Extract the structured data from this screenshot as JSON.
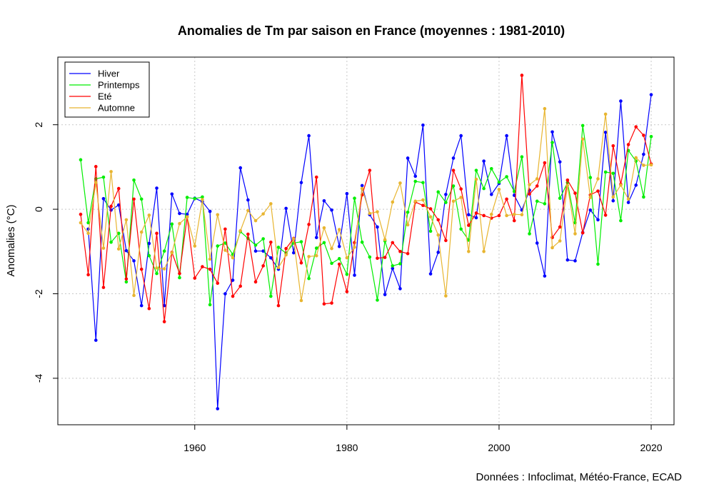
{
  "chart_data": {
    "type": "line",
    "title": "Anomalies de Tm par saison en France (moyennes : 1981-2010)",
    "xlabel": "",
    "ylabel": "Anomalies (°C)",
    "source": "Données : Infoclimat, Météo-France, ECAD",
    "xlim": [
      1942,
      2023
    ],
    "ylim": [
      -5.1,
      3.6
    ],
    "x_ticks": [
      1960,
      1980,
      2000,
      2020
    ],
    "y_ticks": [
      -4,
      -2,
      0,
      2
    ],
    "grid": true,
    "legend_position": "top-left",
    "x": [
      1945,
      1946,
      1947,
      1948,
      1949,
      1950,
      1951,
      1952,
      1953,
      1954,
      1955,
      1956,
      1957,
      1958,
      1959,
      1960,
      1961,
      1962,
      1963,
      1964,
      1965,
      1966,
      1967,
      1968,
      1969,
      1970,
      1971,
      1972,
      1973,
      1974,
      1975,
      1976,
      1977,
      1978,
      1979,
      1980,
      1981,
      1982,
      1983,
      1984,
      1985,
      1986,
      1987,
      1988,
      1989,
      1990,
      1991,
      1992,
      1993,
      1994,
      1995,
      1996,
      1997,
      1998,
      1999,
      2000,
      2001,
      2002,
      2003,
      2004,
      2005,
      2006,
      2007,
      2008,
      2009,
      2010,
      2011,
      2012,
      2013,
      2014,
      2015,
      2016,
      2017,
      2018,
      2019,
      2020
    ],
    "series": [
      {
        "name": "Hiver",
        "color": "#0000ff",
        "values": [
          null,
          -0.47,
          -3.1,
          0.25,
          -0.02,
          0.1,
          -0.98,
          -1.22,
          -2.28,
          -0.81,
          0.5,
          -2.28,
          0.36,
          -0.1,
          -0.12,
          0.26,
          0.18,
          -0.05,
          -4.72,
          -2.0,
          -1.68,
          0.98,
          0.22,
          -0.99,
          -0.99,
          -1.15,
          -1.42,
          0.02,
          -1.03,
          0.63,
          1.74,
          -0.67,
          0.2,
          -0.02,
          -0.88,
          0.37,
          -1.56,
          0.56,
          -0.13,
          -0.42,
          -2.02,
          -1.4,
          -1.88,
          1.21,
          0.78,
          1.99,
          -1.53,
          -1.02,
          0.35,
          1.21,
          1.74,
          -0.13,
          -0.2,
          1.14,
          0.35,
          0.61,
          1.74,
          0.33,
          -0.02,
          0.45,
          -0.8,
          -1.58,
          1.83,
          1.12,
          -1.2,
          -1.22,
          -0.55,
          -0.02,
          -0.25,
          1.82,
          0.2,
          2.56,
          0.16,
          0.57,
          1.3,
          2.71
        ]
      },
      {
        "name": "Printemps",
        "color": "#00ee00",
        "values": [
          1.17,
          -0.32,
          0.72,
          0.76,
          -0.78,
          -0.57,
          -1.72,
          0.69,
          0.24,
          -1.1,
          -1.52,
          -0.99,
          -0.35,
          -1.62,
          0.28,
          0.25,
          0.29,
          -2.26,
          -0.87,
          -0.8,
          -1.07,
          -0.53,
          -0.69,
          -0.85,
          -0.7,
          -2.06,
          -0.9,
          -1.04,
          -0.8,
          -0.77,
          -1.64,
          -0.92,
          -0.79,
          -1.28,
          -1.17,
          -1.54,
          0.26,
          -0.78,
          -1.13,
          -2.15,
          -0.75,
          -1.34,
          -1.29,
          -0.07,
          0.66,
          0.63,
          -0.52,
          0.41,
          0.16,
          0.55,
          -0.47,
          -0.73,
          0.92,
          0.49,
          0.96,
          0.64,
          0.77,
          0.42,
          1.24,
          -0.58,
          0.19,
          0.13,
          1.58,
          0.26,
          0.63,
          -0.32,
          1.98,
          0.75,
          -1.3,
          0.88,
          0.85,
          -0.27,
          1.39,
          1.14,
          0.29,
          1.72
        ]
      },
      {
        "name": "Eté",
        "color": "#ff0000",
        "values": [
          -0.12,
          -1.55,
          1.01,
          -1.85,
          0.07,
          0.49,
          -1.65,
          0.24,
          -1.42,
          -2.35,
          -0.57,
          -2.66,
          -1.02,
          -1.52,
          -0.18,
          -1.63,
          -1.36,
          -1.42,
          -1.75,
          -0.47,
          -2.06,
          -1.82,
          -0.59,
          -1.72,
          -1.34,
          -0.78,
          -2.28,
          -0.93,
          -0.69,
          -1.27,
          -0.36,
          0.76,
          -2.24,
          -2.22,
          -1.3,
          -1.95,
          -0.79,
          0.34,
          0.92,
          -1.16,
          -1.14,
          -0.79,
          -1.0,
          -1.05,
          0.17,
          0.09,
          0.01,
          -0.25,
          -0.74,
          0.92,
          0.48,
          -0.38,
          -0.09,
          -0.15,
          -0.21,
          -0.15,
          0.24,
          -0.27,
          3.17,
          0.36,
          0.55,
          1.1,
          -0.67,
          -0.42,
          0.69,
          0.38,
          -0.56,
          0.34,
          0.43,
          -0.14,
          1.5,
          0.59,
          1.53,
          1.95,
          1.75,
          1.07
        ]
      },
      {
        "name": "Automne",
        "color": "#e8b530",
        "values": [
          -0.32,
          -0.57,
          0.63,
          -0.92,
          0.89,
          -0.94,
          -0.25,
          -2.04,
          -0.54,
          -0.14,
          -1.39,
          -1.41,
          -1.03,
          -0.34,
          -0.18,
          -0.87,
          0.23,
          -1.18,
          -0.13,
          -0.97,
          -1.15,
          -0.51,
          -0.03,
          -0.27,
          -0.11,
          0.13,
          -1.38,
          -1.08,
          -0.7,
          -2.16,
          -1.12,
          -1.1,
          -0.44,
          -0.93,
          -0.48,
          -1.15,
          -0.9,
          0.49,
          -0.1,
          -0.06,
          -0.72,
          0.17,
          0.62,
          -0.37,
          0.19,
          0.22,
          -0.18,
          -0.61,
          -2.05,
          0.19,
          0.28,
          -1.0,
          0.71,
          -1.0,
          -0.12,
          0.47,
          -0.15,
          -0.12,
          -0.13,
          0.58,
          0.72,
          2.38,
          -0.91,
          -0.75,
          0.56,
          -0.58,
          1.66,
          0.28,
          0.72,
          2.25,
          0.29,
          0.57,
          0.24,
          1.22,
          1.04,
          1.05
        ]
      }
    ]
  }
}
